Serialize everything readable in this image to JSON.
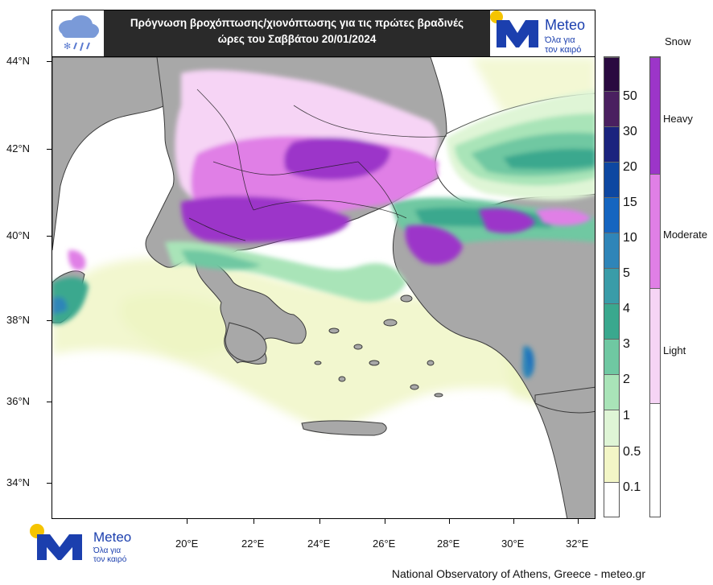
{
  "title_line1": "Πρόγνωση βροχόπτωσης/χιονόπτωσης για τις πρώτες βραδινές",
  "title_line2": "ώρες του Σαββάτου 20/01/2024",
  "logo": {
    "name": "Meteo",
    "tagline1": "Όλα για",
    "tagline2": "τον καιρό"
  },
  "lat_ticks": [
    "44°N",
    "42°N",
    "40°N",
    "38°N",
    "36°N",
    "34°N"
  ],
  "lon_ticks": [
    "20°E",
    "22°E",
    "24°E",
    "26°E",
    "28°E",
    "30°E",
    "32°E"
  ],
  "precip_legend": {
    "labels": [
      "50",
      "30",
      "20",
      "15",
      "10",
      "5",
      "4",
      "3",
      "2",
      "1",
      "0.5",
      "0.1"
    ],
    "colors": [
      "#2a0a40",
      "#4a2060",
      "#1a237e",
      "#0d47a1",
      "#1565c0",
      "#2f85b8",
      "#3a9ca8",
      "#3aa88e",
      "#6fc8a2",
      "#a9e4b8",
      "#dff5d6",
      "#f3f6c6",
      "#f7f9d8",
      "#ffffff"
    ]
  },
  "snow_legend": {
    "title": "Snow",
    "labels": [
      "Heavy",
      "Moderate",
      "Light"
    ],
    "colors": [
      "#9c35c9",
      "#e07fe6",
      "#f6d4f5",
      "#ffffff"
    ]
  },
  "colors": {
    "land": "#a8a8a8",
    "sea": "#ffffff",
    "banner": "#2a2a2a",
    "brand": "#1b3fae",
    "sun": "#f5c400"
  },
  "attribution": "National Observatory of Athens, Greece - meteo.gr"
}
